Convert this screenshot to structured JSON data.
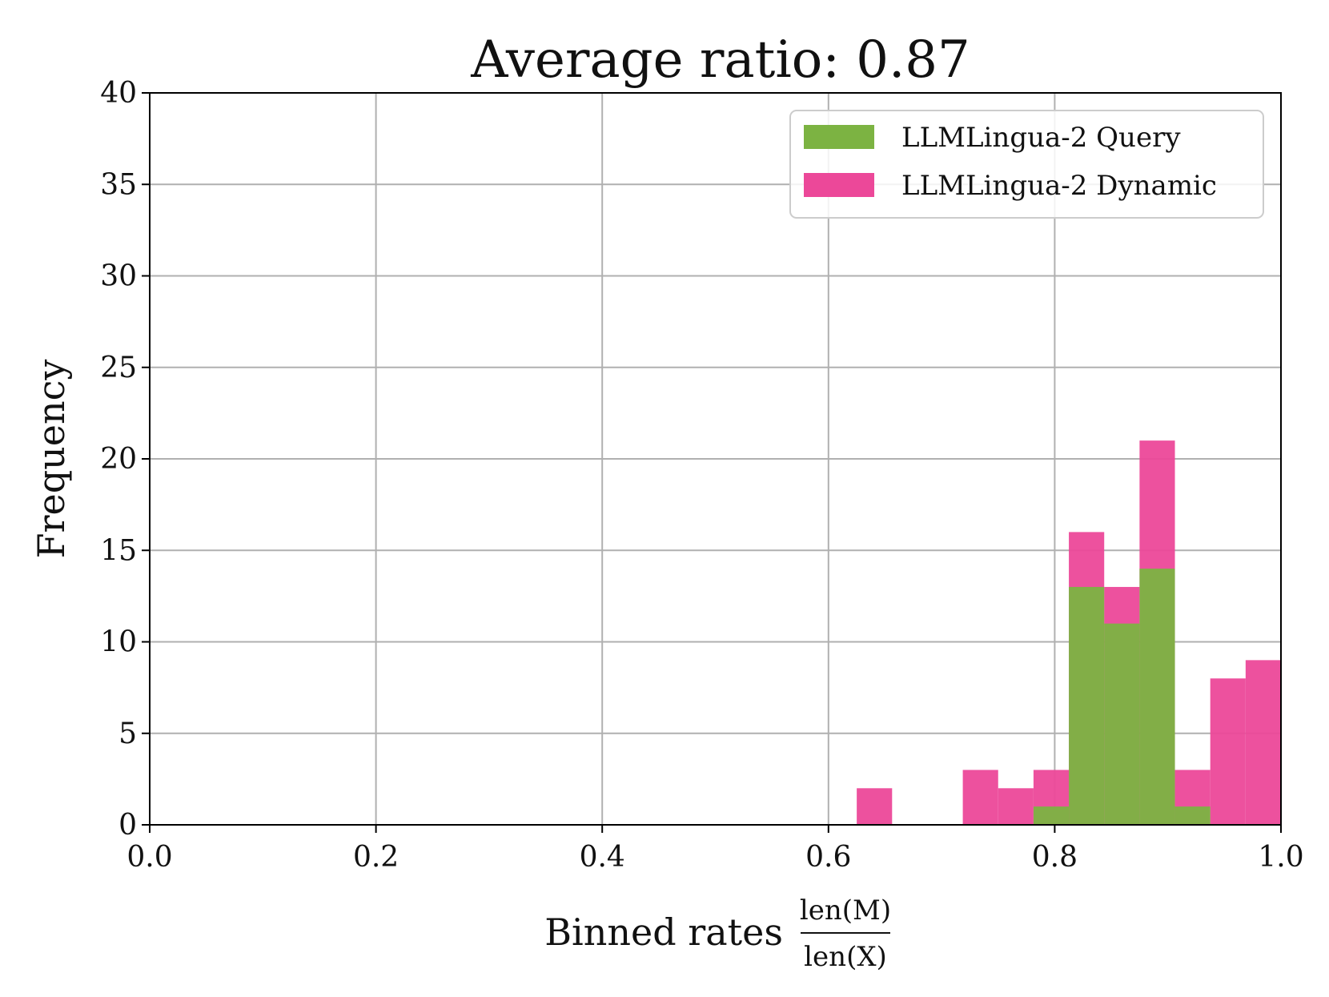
{
  "chart_data": {
    "type": "bar",
    "title": "Average ratio: 0.87",
    "xlabel": {
      "text": "Binned rates",
      "numerator": "len(M)",
      "denominator": "len(X)"
    },
    "ylabel": "Frequency",
    "xlim": [
      0.0,
      1.0
    ],
    "ylim": [
      0,
      40
    ],
    "xticks": [
      "0.0",
      "0.2",
      "0.4",
      "0.6",
      "0.8",
      "1.0"
    ],
    "yticks": [
      "0",
      "5",
      "10",
      "15",
      "20",
      "25",
      "30",
      "35",
      "40"
    ],
    "grid": true,
    "legend_position": "top-right",
    "bin_width": 0.03125,
    "series": [
      {
        "name": "LLMLingua-2 Query",
        "color": "#7CB342",
        "bins": [
          {
            "x0": 0.78125,
            "count": 1
          },
          {
            "x0": 0.8125,
            "count": 13
          },
          {
            "x0": 0.84375,
            "count": 11
          },
          {
            "x0": 0.875,
            "count": 14
          },
          {
            "x0": 0.90625,
            "count": 1
          }
        ]
      },
      {
        "name": "LLMLingua-2 Dynamic",
        "color": "#EC4899",
        "bins": [
          {
            "x0": 0.625,
            "count": 2
          },
          {
            "x0": 0.71875,
            "count": 3
          },
          {
            "x0": 0.75,
            "count": 2
          },
          {
            "x0": 0.78125,
            "count": 3
          },
          {
            "x0": 0.8125,
            "count": 16
          },
          {
            "x0": 0.84375,
            "count": 13
          },
          {
            "x0": 0.875,
            "count": 21
          },
          {
            "x0": 0.90625,
            "count": 3
          },
          {
            "x0": 0.9375,
            "count": 8
          },
          {
            "x0": 0.96875,
            "count": 9
          }
        ]
      }
    ]
  }
}
